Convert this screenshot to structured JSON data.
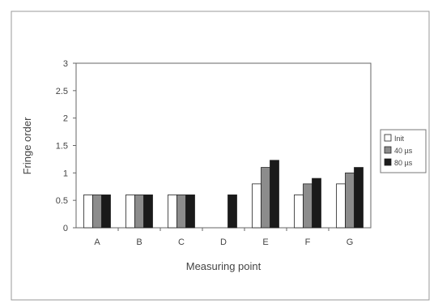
{
  "chart_data": {
    "type": "bar",
    "categories": [
      "A",
      "B",
      "C",
      "D",
      "E",
      "F",
      "G"
    ],
    "series": [
      {
        "name": "Init",
        "values": [
          0.6,
          0.6,
          0.6,
          0.0,
          0.8,
          0.6,
          0.8
        ]
      },
      {
        "name": "40 µs",
        "values": [
          0.6,
          0.6,
          0.6,
          0.0,
          1.1,
          0.8,
          1.0
        ]
      },
      {
        "name": "80 µs",
        "values": [
          0.6,
          0.6,
          0.6,
          0.6,
          1.23,
          0.9,
          1.1
        ]
      }
    ],
    "xlabel": "Measuring point",
    "ylabel": "Fringe order",
    "ylim": [
      0,
      3
    ],
    "yticks": [
      "0",
      "0.5",
      "1",
      "1.5",
      "2",
      "2.5",
      "3"
    ],
    "grid": false,
    "legend_position": "right",
    "colors": {
      "Init": "#ffffff",
      "40 µs": "#8c8c8c",
      "80 µs": "#1a1a1a",
      "axis": "#555555",
      "frame": "#999999"
    }
  }
}
